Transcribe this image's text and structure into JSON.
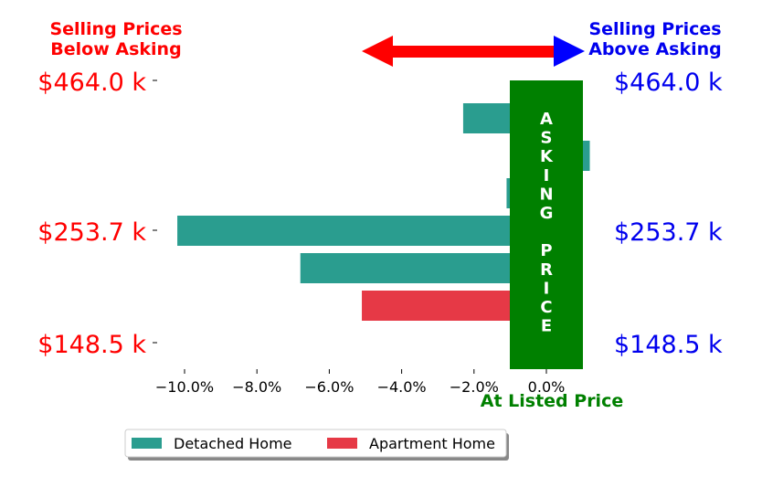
{
  "header": {
    "left_label_line1": "Selling Prices",
    "left_label_line2": "Below Asking",
    "right_label_line1": "Selling Prices",
    "right_label_line2": "Above Asking"
  },
  "asking_band": {
    "letters": [
      "A",
      "S",
      "K",
      "I",
      "N",
      "G",
      "",
      "P",
      "R",
      "I",
      "C",
      "E"
    ],
    "bottom_label": "At Listed Price"
  },
  "colors": {
    "detached": "#2a9d8f",
    "apartment": "#e63946",
    "left_text": "#ff0000",
    "right_text": "#0000ee",
    "band": "#008000",
    "arrow_left": "#ff0000",
    "arrow_right": "#0000ff"
  },
  "price_labels": [
    {
      "text": "$464.0 k"
    },
    {
      "text": "$253.7 k"
    },
    {
      "text": "$148.5 k"
    }
  ],
  "chart_data": {
    "type": "bar",
    "orientation": "horizontal",
    "xlim": [
      -11.0,
      1.2
    ],
    "x_ticks": [
      -10,
      -8,
      -6,
      -4,
      -2,
      0
    ],
    "x_tick_labels": [
      "−10.0%",
      "−8.0%",
      "−6.0%",
      "−4.0%",
      "−2.0%",
      "0.0%"
    ],
    "bars": [
      {
        "series": "Detached Home",
        "value": -2.3
      },
      {
        "series": "Detached Home",
        "value": 1.2
      },
      {
        "series": "Detached Home",
        "value": -1.1
      },
      {
        "series": "Detached Home",
        "value": -10.2
      },
      {
        "series": "Detached Home",
        "value": -6.8
      },
      {
        "series": "Apartment Home",
        "value": -5.1
      }
    ],
    "legend": [
      {
        "name": "Detached Home",
        "color": "#2a9d8f"
      },
      {
        "name": "Apartment Home",
        "color": "#e63946"
      }
    ],
    "legend_position": "bottom"
  }
}
